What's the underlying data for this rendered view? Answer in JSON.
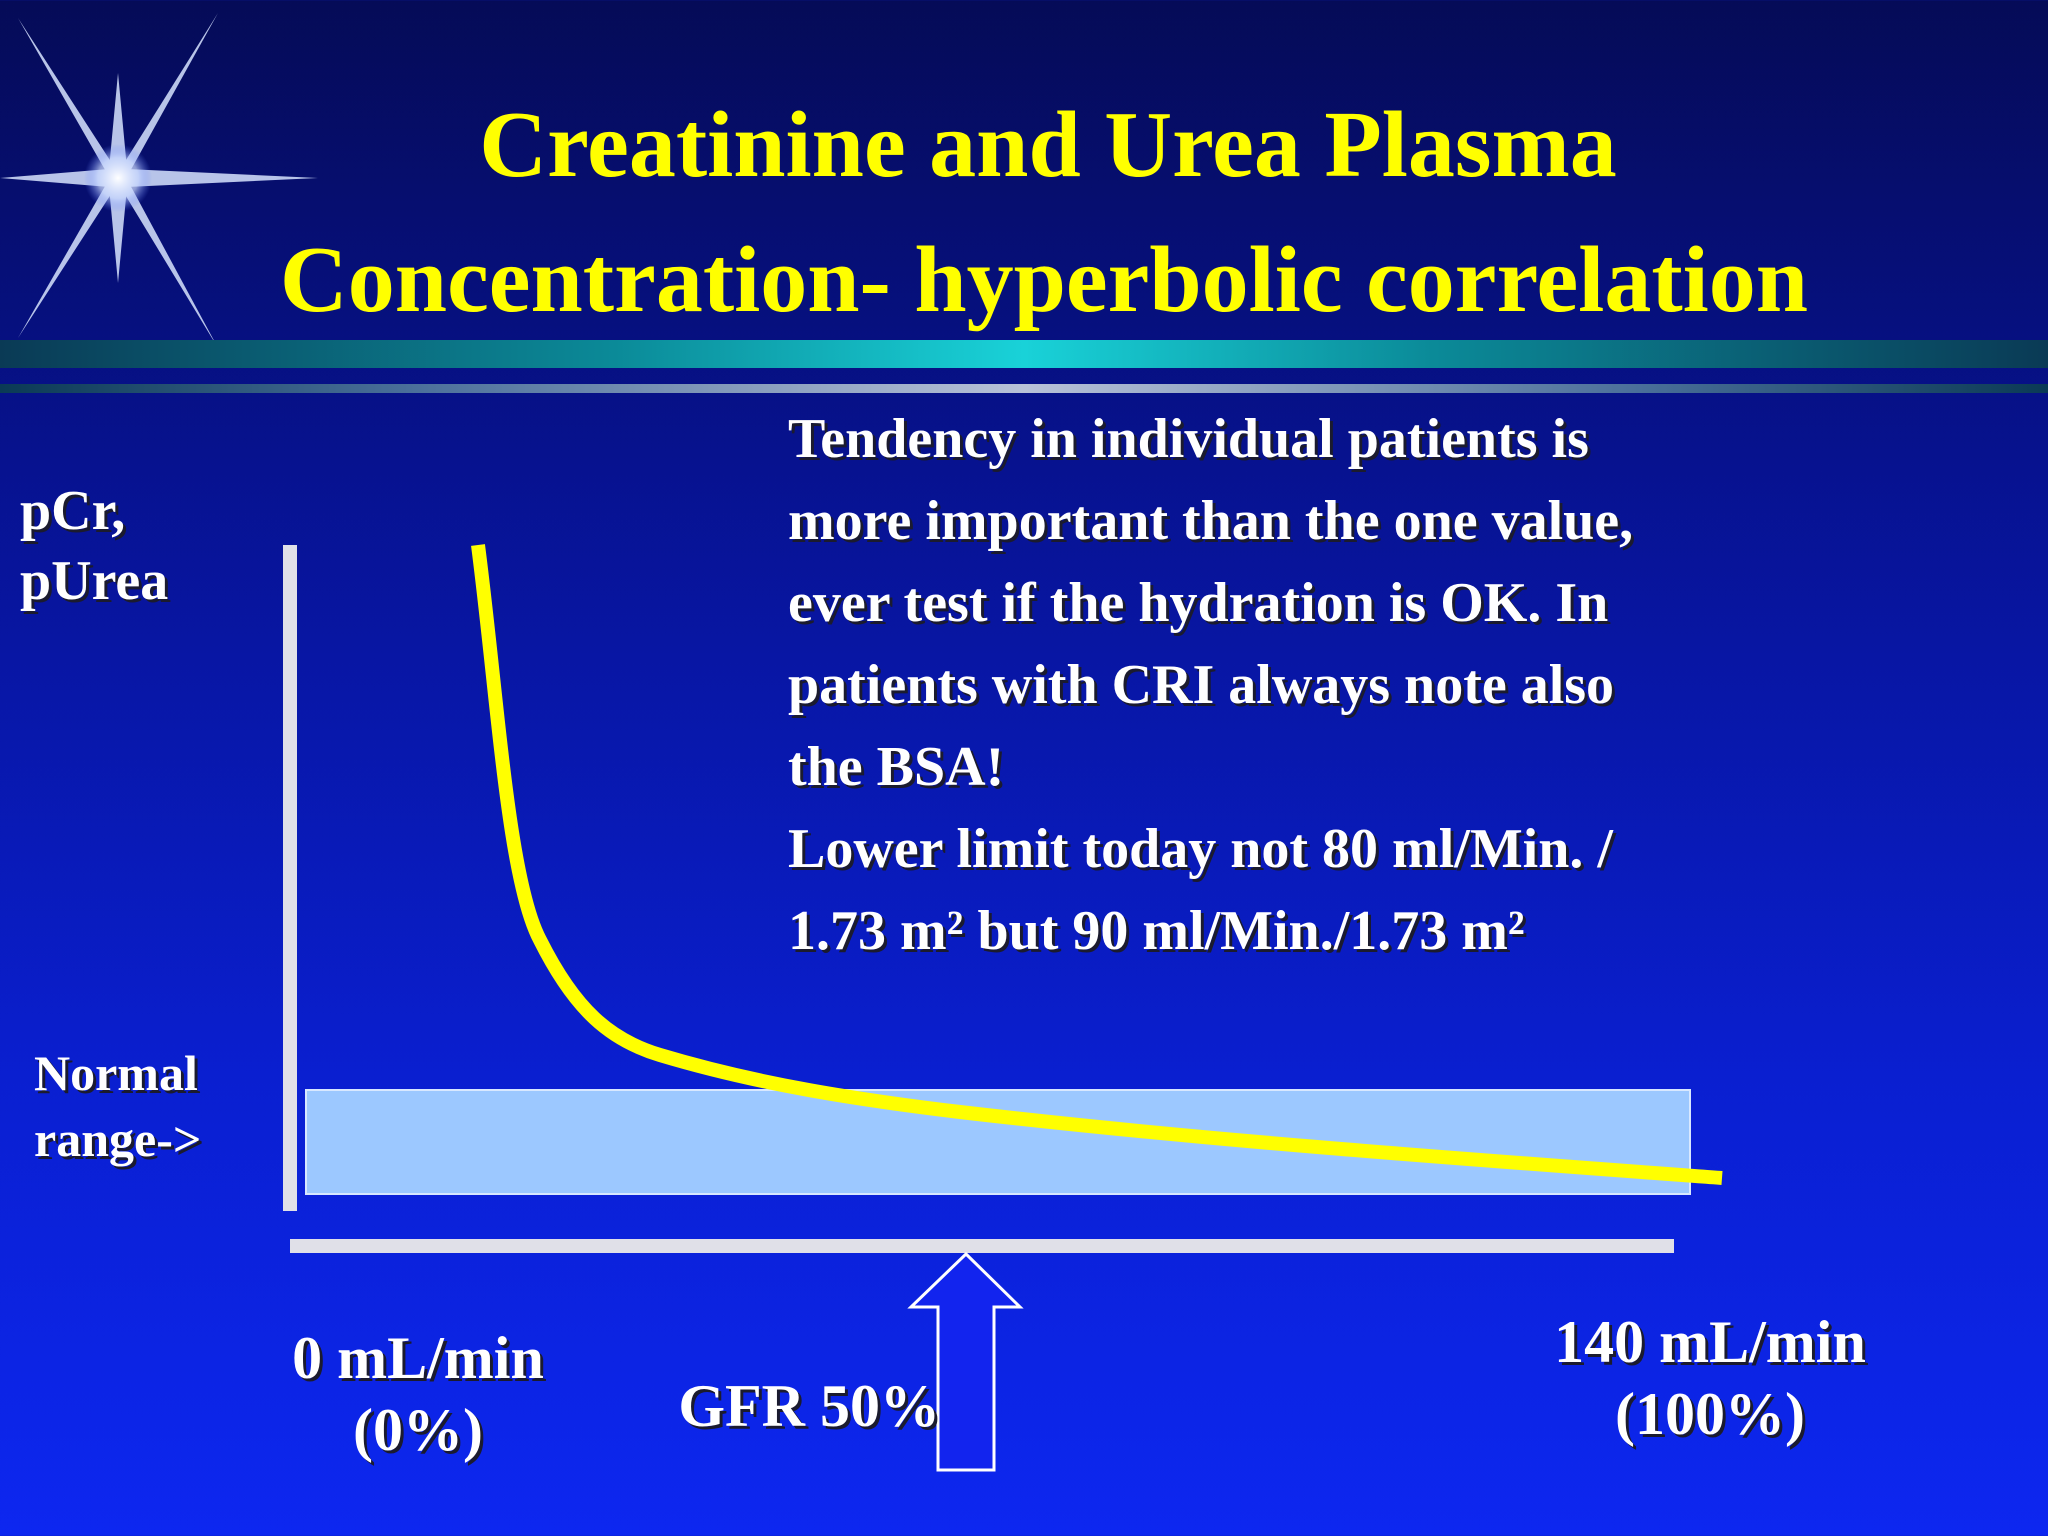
{
  "slide": {
    "title_line1": "Creatinine and Urea Plasma",
    "title_line2": "Concentration- hyperbolic correlation"
  },
  "axes": {
    "y_label_line1": "pCr,",
    "y_label_line2": "pUrea",
    "x_min_line1": "0 mL/min",
    "x_min_line2": "(0%)",
    "x_max_line1": "140 mL/min",
    "x_max_line2": "(100%)"
  },
  "normal_range": {
    "label_line1": "Normal",
    "label_line2": "range->"
  },
  "marker": {
    "label": "GFR 50%"
  },
  "note": {
    "lines": [
      "Tendency in individual patients is",
      "more important than the one value,",
      "ever test if the hydration is OK. In",
      "patients with CRI always note also",
      "the BSA!",
      "Lower limit today not 80 ml/Min. /",
      "1.73 m² but 90 ml/Min./1.73 m²"
    ]
  },
  "colors": {
    "title": "#ffff00",
    "curve": "#ffff00",
    "normal_range_fill": "#9cc8ff",
    "axis": "#e0e0e8",
    "text": "#ffffff"
  }
}
